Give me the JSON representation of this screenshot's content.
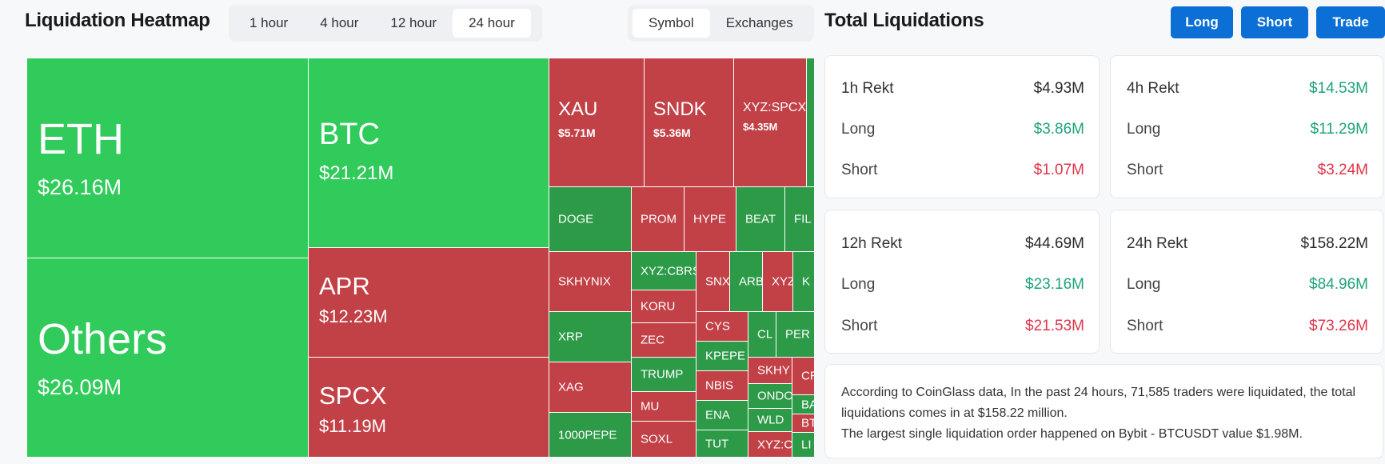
{
  "heatmap": {
    "title": "Liquidation Heatmap",
    "time_tabs": [
      "1 hour",
      "4 hour",
      "12 hour",
      "24 hour"
    ],
    "active_time_tab": "24 hour",
    "view_tabs": [
      "Symbol",
      "Exchanges"
    ],
    "active_view_tab": "Symbol"
  },
  "treemap": {
    "cells": [
      {
        "sym": "ETH",
        "val": "$26.16M",
        "color": "g1"
      },
      {
        "sym": "Others",
        "val": "$26.09M",
        "color": "g1"
      },
      {
        "sym": "BTC",
        "val": "$21.21M",
        "color": "g1"
      },
      {
        "sym": "APR",
        "val": "$12.23M",
        "color": "r1"
      },
      {
        "sym": "SPCX",
        "val": "$11.19M",
        "color": "r1"
      },
      {
        "sym": "XAU",
        "val": "$5.71M",
        "color": "r1"
      },
      {
        "sym": "SNDK",
        "val": "$5.36M",
        "color": "r1"
      },
      {
        "sym": "XYZ:SPCX",
        "val": "$4.35M",
        "color": "r1"
      },
      {
        "sym": "DOGE",
        "color": "g2"
      },
      {
        "sym": "PROM",
        "color": "r1"
      },
      {
        "sym": "HYPE",
        "color": "r1"
      },
      {
        "sym": "BEAT",
        "color": "g2"
      },
      {
        "sym": "FIL",
        "color": "g2"
      },
      {
        "sym": "SKHYNIX",
        "color": "r1"
      },
      {
        "sym": "XYZ:CBRS",
        "color": "g2"
      },
      {
        "sym": "SNX",
        "color": "r1"
      },
      {
        "sym": "ARB",
        "color": "g2"
      },
      {
        "sym": "XYZ",
        "color": "r1"
      },
      {
        "sym": "K",
        "color": "g2"
      },
      {
        "sym": "KORU",
        "color": "r1"
      },
      {
        "sym": "XRP",
        "color": "g2"
      },
      {
        "sym": "CYS",
        "color": "r1"
      },
      {
        "sym": "CL",
        "color": "g2"
      },
      {
        "sym": "PER",
        "color": "g2"
      },
      {
        "sym": "ZEC",
        "color": "r1"
      },
      {
        "sym": "KPEPE",
        "color": "g2"
      },
      {
        "sym": "XAG",
        "color": "r1"
      },
      {
        "sym": "TRUMP",
        "color": "g2"
      },
      {
        "sym": "SKHY",
        "color": "r1"
      },
      {
        "sym": "CR",
        "color": "r1"
      },
      {
        "sym": "NBIS",
        "color": "r1"
      },
      {
        "sym": "ONDO",
        "color": "g2"
      },
      {
        "sym": "BA",
        "color": "g2"
      },
      {
        "sym": "MU",
        "color": "r1"
      },
      {
        "sym": "ENA",
        "color": "g2"
      },
      {
        "sym": "WLD",
        "color": "g2"
      },
      {
        "sym": "BT",
        "color": "r1"
      },
      {
        "sym": "1000PEPE",
        "color": "g2"
      },
      {
        "sym": "SOXL",
        "color": "r1"
      },
      {
        "sym": "TUT",
        "color": "g2"
      },
      {
        "sym": "XYZ:C",
        "color": "r1"
      },
      {
        "sym": "LI",
        "color": "g2"
      },
      {
        "sym": "",
        "color": "g2"
      }
    ]
  },
  "totals": {
    "title": "Total Liquidations",
    "buttons": {
      "long": "Long",
      "short": "Short",
      "trade": "Trade"
    },
    "cards": [
      {
        "title": "1h Rekt",
        "total": "$4.93M",
        "long_label": "Long",
        "long": "$3.86M",
        "short_label": "Short",
        "short": "$1.07M",
        "total_color": "neutral"
      },
      {
        "title": "4h Rekt",
        "total": "$14.53M",
        "long_label": "Long",
        "long": "$11.29M",
        "short_label": "Short",
        "short": "$3.24M",
        "total_color": "green"
      },
      {
        "title": "12h Rekt",
        "total": "$44.69M",
        "long_label": "Long",
        "long": "$23.16M",
        "short_label": "Short",
        "short": "$21.53M",
        "total_color": "neutral"
      },
      {
        "title": "24h Rekt",
        "total": "$158.22M",
        "long_label": "Long",
        "long": "$84.96M",
        "short_label": "Short",
        "short": "$73.26M",
        "total_color": "neutral"
      }
    ],
    "summary_line1": "According to CoinGlass data, In the past 24 hours, 71,585 traders were liquidated, the total liquidations comes in at $158.22 million.",
    "summary_line2": "The largest single liquidation order happened on Bybit - BTCUSDT value $1.98M."
  }
}
